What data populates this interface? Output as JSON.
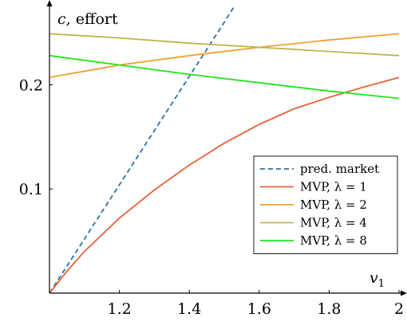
{
  "chart_data": {
    "type": "line",
    "xlabel_var": "v",
    "xlabel_sub": "1",
    "ylabel_var": "c",
    "ylabel_rest": ", effort",
    "xlim": [
      1.0,
      2.0
    ],
    "ylim": [
      0.0,
      0.26
    ],
    "x_ticks": [
      1.2,
      1.4,
      1.6,
      1.8,
      2.0
    ],
    "x_tick_labels": [
      "1.2",
      "1.4",
      "1.6",
      "1.8",
      "2"
    ],
    "y_ticks": [
      0.1,
      0.2
    ],
    "y_tick_labels": [
      "0.1",
      "0.2"
    ],
    "grid": false,
    "legend_position": "lower-right",
    "series": [
      {
        "name": "pred. market",
        "color": "#2873a8",
        "dashed": true,
        "x": [
          1.0,
          1.1,
          1.2,
          1.3,
          1.4,
          1.5,
          1.53
        ],
        "y": [
          0.0,
          0.052,
          0.104,
          0.156,
          0.208,
          0.26,
          0.276
        ]
      },
      {
        "name": "MVP, λ = 1",
        "color": "#e8613a",
        "dashed": false,
        "x": [
          1.0,
          1.05,
          1.1,
          1.2,
          1.3,
          1.4,
          1.5,
          1.6,
          1.7,
          1.8,
          1.9,
          2.0
        ],
        "y": [
          0.0,
          0.021,
          0.04,
          0.072,
          0.099,
          0.123,
          0.144,
          0.162,
          0.177,
          0.188,
          0.198,
          0.207
        ]
      },
      {
        "name": "MVP, λ = 2",
        "color": "#f0a030",
        "dashed": false,
        "x": [
          1.0,
          1.2,
          1.4,
          1.6,
          1.8,
          2.0
        ],
        "y": [
          0.207,
          0.219,
          0.228,
          0.236,
          0.243,
          0.249
        ]
      },
      {
        "name": "MVP, λ = 4",
        "color": "#bdb54f",
        "dashed": false,
        "x": [
          1.0,
          1.2,
          1.4,
          1.6,
          1.8,
          2.0
        ],
        "y": [
          0.249,
          0.245,
          0.24,
          0.236,
          0.232,
          0.228
        ]
      },
      {
        "name": "MVP, λ = 8",
        "color": "#22e41a",
        "dashed": false,
        "x": [
          1.0,
          1.2,
          1.4,
          1.6,
          1.8,
          2.0
        ],
        "y": [
          0.228,
          0.219,
          0.21,
          0.202,
          0.194,
          0.187
        ]
      }
    ]
  }
}
